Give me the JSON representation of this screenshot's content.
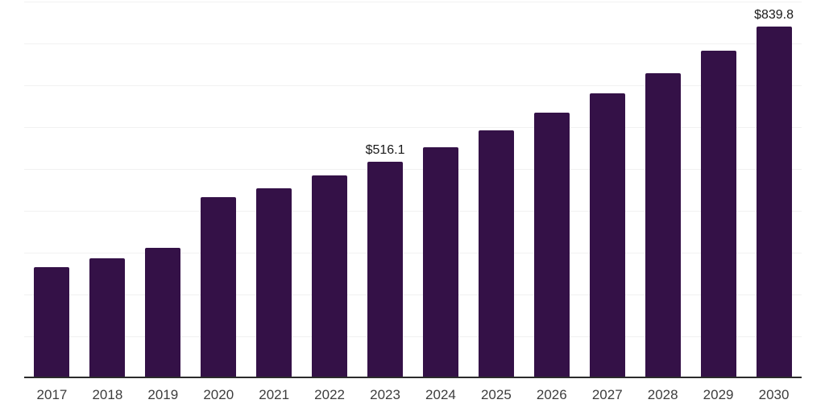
{
  "chart_data": {
    "type": "bar",
    "title": "",
    "xlabel": "",
    "ylabel": "",
    "categories": [
      "2017",
      "2018",
      "2019",
      "2020",
      "2021",
      "2022",
      "2023",
      "2024",
      "2025",
      "2026",
      "2027",
      "2028",
      "2029",
      "2030"
    ],
    "values": [
      266,
      286,
      312,
      432,
      453,
      485,
      516.1,
      552,
      591,
      634,
      681,
      728,
      782,
      839.8
    ],
    "data_labels": [
      {
        "category": "2023",
        "text": "$516.1"
      },
      {
        "category": "2030",
        "text": "$839.8"
      }
    ],
    "ylim": [
      0,
      903
    ],
    "grid": {
      "horizontal": true,
      "interval": 100,
      "vertical": false
    },
    "legend_position": "none",
    "colors": {
      "bar": "#341147",
      "axis_line": "#2b2b2b",
      "gridline": "#f1f1f1",
      "tick_label": "#3d3d3d",
      "data_label": "#1a1a1a",
      "background": "#ffffff"
    }
  }
}
